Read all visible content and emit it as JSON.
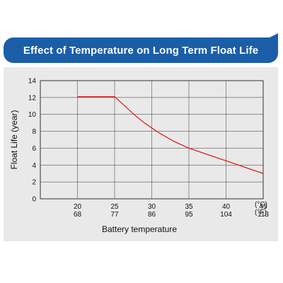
{
  "chart_data": {
    "type": "line",
    "title": "Effect of Temperature on Long Term Float Life",
    "xlabel": "Battery temperature",
    "ylabel": "Float Life (year)",
    "xlim": [
      15,
      45
    ],
    "ylim": [
      0,
      14
    ],
    "yticks": [
      0,
      2,
      4,
      6,
      8,
      10,
      12,
      14
    ],
    "xticks": [
      {
        "c": 20,
        "c_label": "20",
        "f_label": "68"
      },
      {
        "c": 25,
        "c_label": "25",
        "f_label": "77"
      },
      {
        "c": 30,
        "c_label": "30",
        "f_label": "86"
      },
      {
        "c": 35,
        "c_label": "35",
        "f_label": "95"
      },
      {
        "c": 40,
        "c_label": "40",
        "f_label": "104"
      },
      {
        "c": 45,
        "c_label": "45",
        "f_label": "113"
      }
    ],
    "unit_c": "(°C)",
    "unit_f": "(°F)",
    "grid": true,
    "series": [
      {
        "color": "#e0201b",
        "x": [
          20,
          25,
          26,
          27,
          28,
          29,
          30,
          31,
          32,
          33,
          34,
          35,
          36,
          37,
          38,
          39,
          40,
          41,
          42,
          43,
          44,
          45
        ],
        "y": [
          12.1,
          12.1,
          11.3,
          10.5,
          9.7,
          9.0,
          8.4,
          7.8,
          7.3,
          6.8,
          6.4,
          6.0,
          5.7,
          5.4,
          5.1,
          4.8,
          4.5,
          4.2,
          3.9,
          3.6,
          3.3,
          3.0
        ]
      }
    ]
  }
}
